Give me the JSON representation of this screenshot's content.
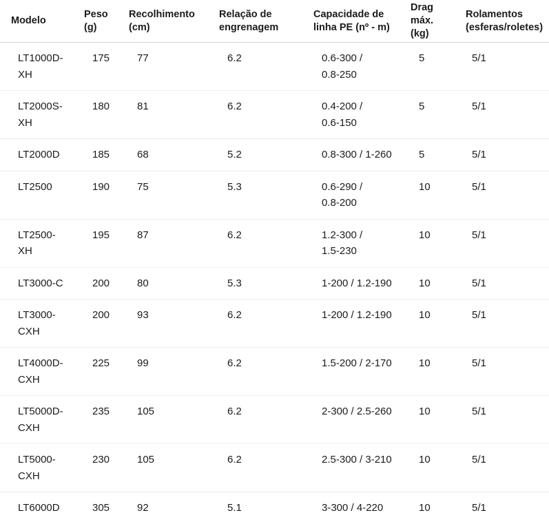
{
  "colors": {
    "text": "#1b1b1b",
    "header_border": "#d4d4d4",
    "row_border": "#ededed",
    "background": "#ffffff"
  },
  "table": {
    "column_ids": [
      "modelo",
      "peso-g",
      "recolhimento-cm",
      "relacao-engrenagem",
      "capacidade-linha-pe",
      "drag-max",
      "rolamentos"
    ],
    "headers": [
      "Modelo",
      "Peso\n(g)",
      "Recolhimento\n(cm)",
      "Relação de\nengrenagem",
      "Capacidade de\nlinha PE (nº - m)",
      "Drag\nmáx.\n(kg)",
      "Rolamentos\n(esferas/roletes)"
    ],
    "rows": [
      [
        "LT1000D-\nXH",
        "175",
        "77",
        "6.2",
        "0.6-300 /\n0.8-250",
        "5",
        "5/1"
      ],
      [
        "LT2000S-\nXH",
        "180",
        "81",
        "6.2",
        "0.4-200 /\n0.6-150",
        "5",
        "5/1"
      ],
      [
        "LT2000D",
        "185",
        "68",
        "5.2",
        "0.8-300 / 1-260",
        "5",
        "5/1"
      ],
      [
        "LT2500",
        "190",
        "75",
        "5.3",
        "0.6-290 /\n0.8-200",
        "10",
        "5/1"
      ],
      [
        "LT2500-\nXH",
        "195",
        "87",
        "6.2",
        "1.2-300 /\n1.5-230",
        "10",
        "5/1"
      ],
      [
        "LT3000-C",
        "200",
        "80",
        "5.3",
        "1-200 / 1.2-190",
        "10",
        "5/1"
      ],
      [
        "LT3000-\nCXH",
        "200",
        "93",
        "6.2",
        "1-200 / 1.2-190",
        "10",
        "5/1"
      ],
      [
        "LT4000D-\nCXH",
        "225",
        "99",
        "6.2",
        "1.5-200 / 2-170",
        "10",
        "5/1"
      ],
      [
        "LT5000D-\nCXH",
        "235",
        "105",
        "6.2",
        "2-300 / 2.5-260",
        "10",
        "5/1"
      ],
      [
        "LT5000-\nCXH",
        "230",
        "105",
        "6.2",
        "2.5-300 / 3-210",
        "10",
        "5/1"
      ],
      [
        "LT6000D",
        "305",
        "92",
        "5.1",
        "3-300 / 4-220",
        "10",
        "5/1"
      ]
    ]
  }
}
